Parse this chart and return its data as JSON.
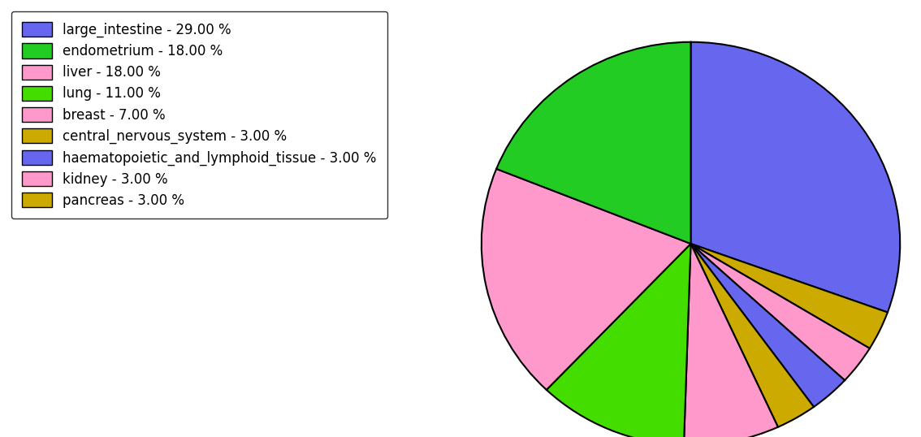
{
  "legend_labels": [
    "large_intestine - 29.00 %",
    "endometrium - 18.00 %",
    "liver - 18.00 %",
    "lung - 11.00 %",
    "breast - 7.00 %",
    "central_nervous_system - 3.00 %",
    "haematopoietic_and_lymphoid_tissue - 3.00 %",
    "kidney - 3.00 %",
    "pancreas - 3.00 %"
  ],
  "legend_colors": [
    "#6666ee",
    "#22cc22",
    "#ff99cc",
    "#44dd00",
    "#ff99cc",
    "#ccaa00",
    "#6666ee",
    "#ff99cc",
    "#ccaa00"
  ],
  "pie_order": [
    [
      "large_intestine",
      29,
      "#6666ee"
    ],
    [
      "pancreas",
      3,
      "#ccaa00"
    ],
    [
      "kidney",
      3,
      "#ff99cc"
    ],
    [
      "haematopoietic_and_lymphoid_tissue",
      3,
      "#6666ee"
    ],
    [
      "central_nervous_system",
      3,
      "#ccaa00"
    ],
    [
      "breast",
      7,
      "#ff99cc"
    ],
    [
      "lung",
      11,
      "#44dd00"
    ],
    [
      "liver",
      18,
      "#ff99cc"
    ],
    [
      "endometrium",
      18,
      "#22cc22"
    ]
  ],
  "startangle": 90,
  "counterclock": false,
  "figsize": [
    11.34,
    5.38
  ],
  "dpi": 100,
  "background_color": "#ffffff",
  "legend_fontsize": 12
}
